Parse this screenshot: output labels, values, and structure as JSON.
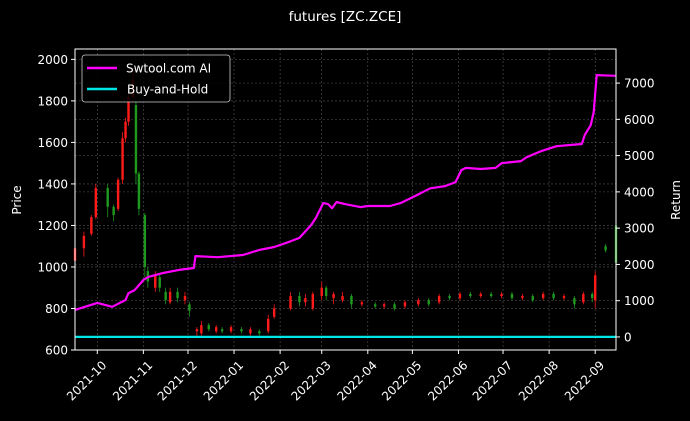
{
  "chart_data": {
    "type": "candlestick+line",
    "title": "futures [ZC.ZCE]",
    "xlabel": "",
    "ylabel_left": "Price",
    "ylabel_right": "Return",
    "x_range": [
      "2021-09-16",
      "2022-09-15"
    ],
    "ylim_left": [
      600,
      2050
    ],
    "ylim_right": [
      -360,
      7940
    ],
    "x_ticks": [
      "2021-10",
      "2021-11",
      "2021-12",
      "2022-01",
      "2022-02",
      "2022-03",
      "2022-04",
      "2022-05",
      "2022-06",
      "2022-07",
      "2022-08",
      "2022-09"
    ],
    "y_ticks_left": [
      600,
      800,
      1000,
      1200,
      1400,
      1600,
      1800,
      2000
    ],
    "y_ticks_right": [
      0,
      1000,
      2000,
      3000,
      4000,
      5000,
      6000,
      7000
    ],
    "grid": true,
    "legend_position": "top-left",
    "colors": {
      "background": "#000000",
      "up": "#ff1a1a",
      "down": "#1f9a1f",
      "strategy": "#ff00ff",
      "buy_hold": "#00e5e5",
      "grid": "#555555"
    },
    "candles_columns": [
      "date",
      "open",
      "close",
      "high",
      "low"
    ],
    "candles": [
      [
        "2021-09-16",
        1030,
        1090,
        1100,
        1010
      ],
      [
        "2021-09-22",
        1090,
        1150,
        1170,
        1050
      ],
      [
        "2021-09-27",
        1160,
        1240,
        1250,
        1150
      ],
      [
        "2021-09-30",
        1240,
        1380,
        1400,
        1230
      ],
      [
        "2021-10-08",
        1380,
        1290,
        1400,
        1240
      ],
      [
        "2021-10-12",
        1290,
        1250,
        1300,
        1220
      ],
      [
        "2021-10-15",
        1280,
        1420,
        1430,
        1270
      ],
      [
        "2021-10-18",
        1420,
        1620,
        1650,
        1400
      ],
      [
        "2021-10-20",
        1620,
        1700,
        1720,
        1600
      ],
      [
        "2021-10-22",
        1700,
        1820,
        1850,
        1680
      ],
      [
        "2021-10-25",
        1820,
        1900,
        1960,
        1800
      ],
      [
        "2021-10-27",
        1780,
        1450,
        1800,
        1400
      ],
      [
        "2021-10-29",
        1450,
        1280,
        1460,
        1250
      ],
      [
        "2021-11-02",
        1250,
        1000,
        1260,
        950
      ],
      [
        "2021-11-04",
        980,
        930,
        1000,
        900
      ],
      [
        "2021-11-09",
        900,
        960,
        980,
        880
      ],
      [
        "2021-11-12",
        950,
        900,
        970,
        880
      ],
      [
        "2021-11-16",
        880,
        840,
        900,
        820
      ],
      [
        "2021-11-19",
        830,
        880,
        900,
        820
      ],
      [
        "2021-11-24",
        880,
        850,
        900,
        830
      ],
      [
        "2021-11-29",
        840,
        860,
        880,
        820
      ],
      [
        "2021-12-02",
        820,
        790,
        830,
        760
      ],
      [
        "2021-12-07",
        690,
        700,
        710,
        670
      ],
      [
        "2021-12-10",
        680,
        720,
        740,
        670
      ],
      [
        "2021-12-15",
        720,
        700,
        730,
        690
      ],
      [
        "2021-12-20",
        690,
        710,
        720,
        680
      ],
      [
        "2021-12-24",
        700,
        690,
        710,
        680
      ],
      [
        "2021-12-30",
        690,
        710,
        720,
        680
      ],
      [
        "2022-01-06",
        700,
        690,
        710,
        680
      ],
      [
        "2022-01-12",
        680,
        700,
        710,
        670
      ],
      [
        "2022-01-18",
        690,
        680,
        700,
        670
      ],
      [
        "2022-01-24",
        690,
        750,
        770,
        680
      ],
      [
        "2022-01-28",
        760,
        800,
        820,
        750
      ],
      [
        "2022-02-08",
        800,
        860,
        880,
        790
      ],
      [
        "2022-02-14",
        860,
        830,
        880,
        810
      ],
      [
        "2022-02-18",
        830,
        850,
        870,
        810
      ],
      [
        "2022-02-23",
        800,
        870,
        880,
        790
      ],
      [
        "2022-03-01",
        860,
        900,
        930,
        840
      ],
      [
        "2022-03-04",
        900,
        860,
        910,
        840
      ],
      [
        "2022-03-09",
        850,
        870,
        880,
        820
      ],
      [
        "2022-03-15",
        840,
        860,
        880,
        830
      ],
      [
        "2022-03-21",
        860,
        820,
        870,
        800
      ],
      [
        "2022-03-28",
        820,
        830,
        840,
        810
      ],
      [
        "2022-04-06",
        820,
        810,
        830,
        800
      ],
      [
        "2022-04-12",
        810,
        820,
        830,
        800
      ],
      [
        "2022-04-19",
        820,
        800,
        830,
        790
      ],
      [
        "2022-04-26",
        810,
        830,
        840,
        800
      ],
      [
        "2022-05-05",
        820,
        840,
        850,
        810
      ],
      [
        "2022-05-12",
        840,
        820,
        850,
        810
      ],
      [
        "2022-05-19",
        830,
        860,
        870,
        820
      ],
      [
        "2022-05-26",
        860,
        850,
        870,
        840
      ],
      [
        "2022-06-02",
        850,
        870,
        880,
        840
      ],
      [
        "2022-06-09",
        870,
        860,
        880,
        850
      ],
      [
        "2022-06-16",
        860,
        870,
        880,
        850
      ],
      [
        "2022-06-23",
        870,
        860,
        880,
        850
      ],
      [
        "2022-06-30",
        860,
        870,
        880,
        850
      ],
      [
        "2022-07-07",
        870,
        850,
        880,
        840
      ],
      [
        "2022-07-14",
        850,
        860,
        870,
        840
      ],
      [
        "2022-07-21",
        860,
        840,
        870,
        830
      ],
      [
        "2022-07-28",
        850,
        870,
        880,
        840
      ],
      [
        "2022-08-04",
        870,
        850,
        880,
        840
      ],
      [
        "2022-08-11",
        850,
        860,
        870,
        840
      ],
      [
        "2022-08-18",
        850,
        820,
        860,
        800
      ],
      [
        "2022-08-24",
        830,
        870,
        880,
        820
      ],
      [
        "2022-08-30",
        870,
        850,
        880,
        830
      ],
      [
        "2022-09-01",
        840,
        960,
        980,
        800
      ],
      [
        "2022-09-08",
        1100,
        1080,
        1110,
        1070
      ],
      [
        "2022-09-15",
        1200,
        1020,
        1210,
        1010
      ]
    ],
    "series": [
      {
        "name": "Swtool.com AI",
        "axis": "right",
        "points": [
          [
            "2021-09-16",
            745
          ],
          [
            "2021-10-01",
            940
          ],
          [
            "2021-10-11",
            830
          ],
          [
            "2021-10-20",
            1020
          ],
          [
            "2021-10-22",
            1210
          ],
          [
            "2021-10-26",
            1290
          ],
          [
            "2021-11-01",
            1570
          ],
          [
            "2021-11-04",
            1650
          ],
          [
            "2021-11-14",
            1760
          ],
          [
            "2021-11-25",
            1850
          ],
          [
            "2021-12-05",
            1900
          ],
          [
            "2021-12-06",
            2230
          ],
          [
            "2021-12-21",
            2200
          ],
          [
            "2022-01-07",
            2260
          ],
          [
            "2022-01-18",
            2400
          ],
          [
            "2022-01-28",
            2480
          ],
          [
            "2022-02-07",
            2620
          ],
          [
            "2022-02-14",
            2730
          ],
          [
            "2022-02-22",
            3090
          ],
          [
            "2022-02-25",
            3280
          ],
          [
            "2022-03-02",
            3690
          ],
          [
            "2022-03-05",
            3670
          ],
          [
            "2022-03-08",
            3550
          ],
          [
            "2022-03-11",
            3720
          ],
          [
            "2022-03-17",
            3660
          ],
          [
            "2022-03-27",
            3580
          ],
          [
            "2022-04-01",
            3610
          ],
          [
            "2022-04-16",
            3610
          ],
          [
            "2022-04-23",
            3690
          ],
          [
            "2022-05-03",
            3890
          ],
          [
            "2022-05-13",
            4100
          ],
          [
            "2022-05-23",
            4160
          ],
          [
            "2022-05-30",
            4270
          ],
          [
            "2022-06-03",
            4600
          ],
          [
            "2022-06-06",
            4660
          ],
          [
            "2022-06-16",
            4630
          ],
          [
            "2022-06-26",
            4660
          ],
          [
            "2022-06-30",
            4790
          ],
          [
            "2022-07-13",
            4850
          ],
          [
            "2022-07-17",
            4960
          ],
          [
            "2022-07-27",
            5130
          ],
          [
            "2022-08-06",
            5260
          ],
          [
            "2022-08-23",
            5320
          ],
          [
            "2022-08-25",
            5570
          ],
          [
            "2022-08-29",
            5840
          ],
          [
            "2022-08-31",
            6200
          ],
          [
            "2022-09-02",
            7220
          ],
          [
            "2022-09-15",
            7200
          ]
        ]
      },
      {
        "name": "Buy-and-Hold",
        "axis": "right",
        "points": [
          [
            "2021-09-16",
            0
          ],
          [
            "2022-09-15",
            0
          ]
        ]
      }
    ]
  }
}
